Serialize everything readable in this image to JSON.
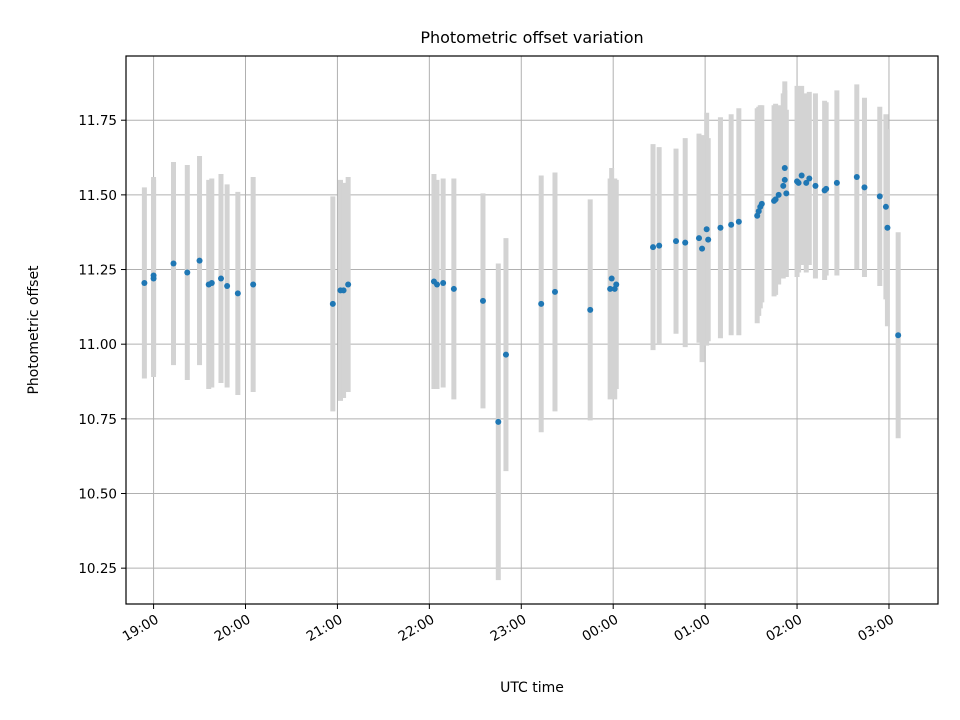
{
  "chart_data": {
    "type": "scatter",
    "title": "Photometric offset variation",
    "xlabel": "UTC time",
    "ylabel": "Photometric offset",
    "x_unit": "UTC time (HH:MM)",
    "xlim": [
      "18:42",
      "03:32"
    ],
    "ylim": [
      10.13,
      11.965
    ],
    "xticks": [
      "19:00",
      "20:00",
      "21:00",
      "22:00",
      "23:00",
      "00:00",
      "01:00",
      "02:00",
      "03:00"
    ],
    "yticks": [
      10.25,
      10.5,
      10.75,
      11.0,
      11.25,
      11.5,
      11.75
    ],
    "grid": true,
    "marker_color": "#1f77b4",
    "errorbar_color": "#d3d3d3",
    "points": [
      {
        "x": "18:54",
        "y": 11.205,
        "err": 0.32
      },
      {
        "x": "19:00",
        "y": 11.22,
        "err": 0.33
      },
      {
        "x": "19:00",
        "y": 11.23,
        "err": 0.33
      },
      {
        "x": "19:13",
        "y": 11.27,
        "err": 0.34
      },
      {
        "x": "19:22",
        "y": 11.24,
        "err": 0.36
      },
      {
        "x": "19:30",
        "y": 11.28,
        "err": 0.35
      },
      {
        "x": "19:36",
        "y": 11.2,
        "err": 0.35
      },
      {
        "x": "19:38",
        "y": 11.205,
        "err": 0.35
      },
      {
        "x": "19:44",
        "y": 11.22,
        "err": 0.35
      },
      {
        "x": "19:48",
        "y": 11.195,
        "err": 0.34
      },
      {
        "x": "19:55",
        "y": 11.17,
        "err": 0.34
      },
      {
        "x": "20:05",
        "y": 11.2,
        "err": 0.36
      },
      {
        "x": "20:57",
        "y": 11.135,
        "err": 0.36
      },
      {
        "x": "21:02",
        "y": 11.18,
        "err": 0.37
      },
      {
        "x": "21:04",
        "y": 11.18,
        "err": 0.36
      },
      {
        "x": "21:07",
        "y": 11.2,
        "err": 0.36
      },
      {
        "x": "22:03",
        "y": 11.21,
        "err": 0.36
      },
      {
        "x": "22:05",
        "y": 11.2,
        "err": 0.35
      },
      {
        "x": "22:09",
        "y": 11.205,
        "err": 0.35
      },
      {
        "x": "22:16",
        "y": 11.185,
        "err": 0.37
      },
      {
        "x": "22:35",
        "y": 11.145,
        "err": 0.36
      },
      {
        "x": "22:45",
        "y": 10.74,
        "err": 0.53
      },
      {
        "x": "22:50",
        "y": 10.965,
        "err": 0.39
      },
      {
        "x": "23:13",
        "y": 11.135,
        "err": 0.43
      },
      {
        "x": "23:22",
        "y": 11.175,
        "err": 0.4
      },
      {
        "x": "23:45",
        "y": 11.115,
        "err": 0.37
      },
      {
        "x": "23:58",
        "y": 11.185,
        "err": 0.37
      },
      {
        "x": "23:59",
        "y": 11.22,
        "err": 0.37
      },
      {
        "x": "00:01",
        "y": 11.185,
        "err": 0.37
      },
      {
        "x": "00:02",
        "y": 11.2,
        "err": 0.35
      },
      {
        "x": "00:26",
        "y": 11.325,
        "err": 0.345
      },
      {
        "x": "00:30",
        "y": 11.33,
        "err": 0.33
      },
      {
        "x": "00:41",
        "y": 11.345,
        "err": 0.31
      },
      {
        "x": "00:47",
        "y": 11.34,
        "err": 0.35
      },
      {
        "x": "00:56",
        "y": 11.355,
        "err": 0.35
      },
      {
        "x": "00:58",
        "y": 11.32,
        "err": 0.38
      },
      {
        "x": "01:01",
        "y": 11.385,
        "err": 0.39
      },
      {
        "x": "01:02",
        "y": 11.35,
        "err": 0.34
      },
      {
        "x": "01:10",
        "y": 11.39,
        "err": 0.37
      },
      {
        "x": "01:17",
        "y": 11.4,
        "err": 0.37
      },
      {
        "x": "01:22",
        "y": 11.41,
        "err": 0.38
      },
      {
        "x": "01:34",
        "y": 11.43,
        "err": 0.36
      },
      {
        "x": "01:35",
        "y": 11.445,
        "err": 0.35
      },
      {
        "x": "01:36",
        "y": 11.46,
        "err": 0.34
      },
      {
        "x": "01:37",
        "y": 11.47,
        "err": 0.33
      },
      {
        "x": "01:45",
        "y": 11.48,
        "err": 0.32
      },
      {
        "x": "01:46",
        "y": 11.485,
        "err": 0.32
      },
      {
        "x": "01:48",
        "y": 11.5,
        "err": 0.3
      },
      {
        "x": "01:51",
        "y": 11.53,
        "err": 0.31
      },
      {
        "x": "01:52",
        "y": 11.59,
        "err": 0.29
      },
      {
        "x": "01:52",
        "y": 11.55,
        "err": 0.3
      },
      {
        "x": "01:53",
        "y": 11.505,
        "err": 0.28
      },
      {
        "x": "02:00",
        "y": 11.545,
        "err": 0.32
      },
      {
        "x": "02:01",
        "y": 11.54,
        "err": 0.3
      },
      {
        "x": "02:03",
        "y": 11.565,
        "err": 0.3
      },
      {
        "x": "02:06",
        "y": 11.54,
        "err": 0.3
      },
      {
        "x": "02:08",
        "y": 11.555,
        "err": 0.29
      },
      {
        "x": "02:12",
        "y": 11.53,
        "err": 0.31
      },
      {
        "x": "02:18",
        "y": 11.515,
        "err": 0.3
      },
      {
        "x": "02:19",
        "y": 11.52,
        "err": 0.29
      },
      {
        "x": "02:26",
        "y": 11.54,
        "err": 0.31
      },
      {
        "x": "02:39",
        "y": 11.56,
        "err": 0.31
      },
      {
        "x": "02:44",
        "y": 11.525,
        "err": 0.3
      },
      {
        "x": "02:54",
        "y": 11.495,
        "err": 0.3
      },
      {
        "x": "02:58",
        "y": 11.46,
        "err": 0.31
      },
      {
        "x": "02:59",
        "y": 11.39,
        "err": 0.33
      },
      {
        "x": "03:06",
        "y": 11.03,
        "err": 0.345
      }
    ]
  }
}
